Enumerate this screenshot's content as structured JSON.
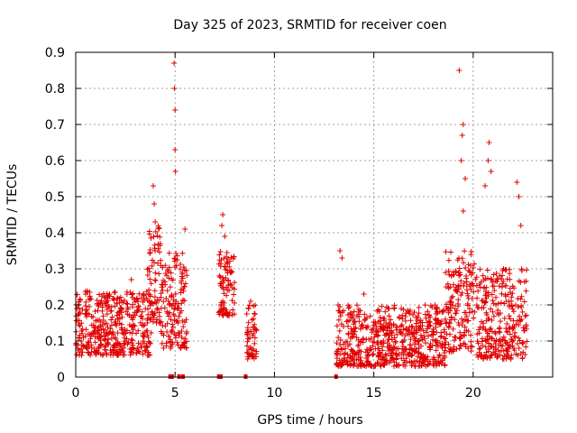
{
  "chart_data": {
    "type": "scatter",
    "title": "Day 325 of 2023, SRMTID for receiver coen",
    "xlabel": "GPS time / hours",
    "ylabel": "SRMTID / TECUs",
    "xlim": [
      0,
      24
    ],
    "ylim": [
      0,
      0.9
    ],
    "x_ticks": [
      0,
      5,
      10,
      15,
      20
    ],
    "x_tick_labels": [
      "0",
      "5",
      "10",
      "15",
      "20"
    ],
    "y_ticks": [
      0,
      0.1,
      0.2,
      0.3,
      0.4,
      0.5,
      0.6,
      0.7,
      0.8,
      0.9
    ],
    "y_tick_labels": [
      "0",
      "0.1",
      "0.2",
      "0.3",
      "0.4",
      "0.5",
      "0.6",
      "0.7",
      "0.8",
      "0.9"
    ],
    "grid": true,
    "marker": "plus",
    "color": "#e00000",
    "clusters": [
      {
        "x_start": 0.0,
        "x_end": 3.8,
        "y_low": 0.06,
        "y_high": 0.24,
        "peaks": [
          [
            0.5,
            0.23
          ],
          [
            1.5,
            0.22
          ],
          [
            2.8,
            0.27
          ]
        ]
      },
      {
        "x_start": 3.6,
        "x_end": 4.3,
        "y_low": 0.15,
        "y_high": 0.42,
        "peaks": [
          [
            3.9,
            0.53
          ],
          [
            3.95,
            0.48
          ],
          [
            4.0,
            0.43
          ]
        ]
      },
      {
        "x_start": 4.3,
        "x_end": 5.6,
        "y_low": 0.08,
        "y_high": 0.35,
        "peaks": [
          [
            4.95,
            0.87
          ],
          [
            4.97,
            0.8
          ],
          [
            5.0,
            0.74
          ],
          [
            5.0,
            0.63
          ],
          [
            5.02,
            0.57
          ],
          [
            5.5,
            0.41
          ]
        ]
      },
      {
        "x_start": 7.2,
        "x_end": 8.0,
        "y_low": 0.17,
        "y_high": 0.35,
        "peaks": [
          [
            7.4,
            0.45
          ],
          [
            7.35,
            0.42
          ],
          [
            7.5,
            0.39
          ]
        ]
      },
      {
        "x_start": 8.6,
        "x_end": 9.1,
        "y_low": 0.05,
        "y_high": 0.2,
        "peaks": [
          [
            8.8,
            0.21
          ]
        ]
      },
      {
        "x_start": 13.1,
        "x_end": 18.6,
        "y_low": 0.03,
        "y_high": 0.2,
        "peaks": [
          [
            13.3,
            0.35
          ],
          [
            13.4,
            0.33
          ],
          [
            14.5,
            0.23
          ]
        ]
      },
      {
        "x_start": 18.6,
        "x_end": 20.1,
        "y_low": 0.07,
        "y_high": 0.35,
        "peaks": [
          [
            19.3,
            0.85
          ],
          [
            19.5,
            0.7
          ],
          [
            19.45,
            0.67
          ],
          [
            19.4,
            0.6
          ],
          [
            19.6,
            0.55
          ],
          [
            19.5,
            0.46
          ]
        ]
      },
      {
        "x_start": 20.1,
        "x_end": 22.7,
        "y_low": 0.05,
        "y_high": 0.3,
        "peaks": [
          [
            20.8,
            0.65
          ],
          [
            20.75,
            0.6
          ],
          [
            20.9,
            0.57
          ],
          [
            20.6,
            0.53
          ],
          [
            22.2,
            0.54
          ],
          [
            22.3,
            0.5
          ],
          [
            22.4,
            0.42
          ]
        ]
      }
    ],
    "zero_markers_x": [
      4.75,
      4.85,
      5.2,
      5.4,
      7.2,
      7.3,
      8.55,
      13.1
    ]
  }
}
